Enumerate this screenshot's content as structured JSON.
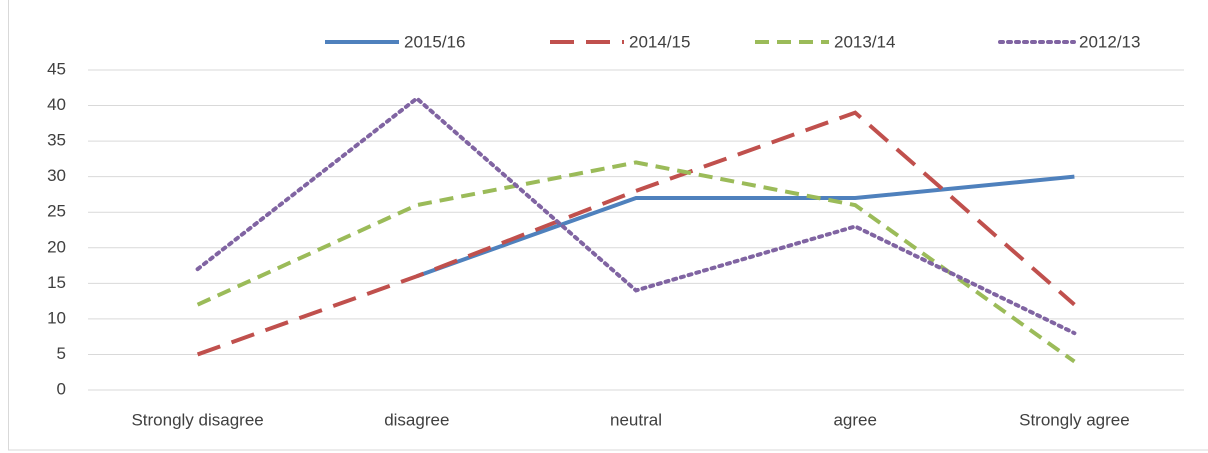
{
  "chart_data": {
    "type": "line",
    "categories": [
      "Strongly disagree",
      "disagree",
      "neutral",
      "agree",
      "Strongly agree"
    ],
    "series": [
      {
        "name": "2015/16",
        "color": "#4f81bd",
        "dash": "solid",
        "values": [
          null,
          16,
          27,
          27,
          30
        ]
      },
      {
        "name": "2014/15",
        "color": "#c0504d",
        "dash": "long-dash",
        "values": [
          5,
          16,
          28,
          39,
          12
        ]
      },
      {
        "name": "2013/14",
        "color": "#9bbb59",
        "dash": "dash",
        "values": [
          12,
          26,
          32,
          26,
          4
        ]
      },
      {
        "name": "2012/13",
        "color": "#8064a2",
        "dash": "dot",
        "values": [
          17,
          41,
          14,
          23,
          8
        ]
      }
    ],
    "ylim": [
      0,
      45
    ],
    "yticks": [
      0,
      5,
      10,
      15,
      20,
      25,
      30,
      35,
      40,
      45
    ],
    "grid": true,
    "legend": "top"
  }
}
